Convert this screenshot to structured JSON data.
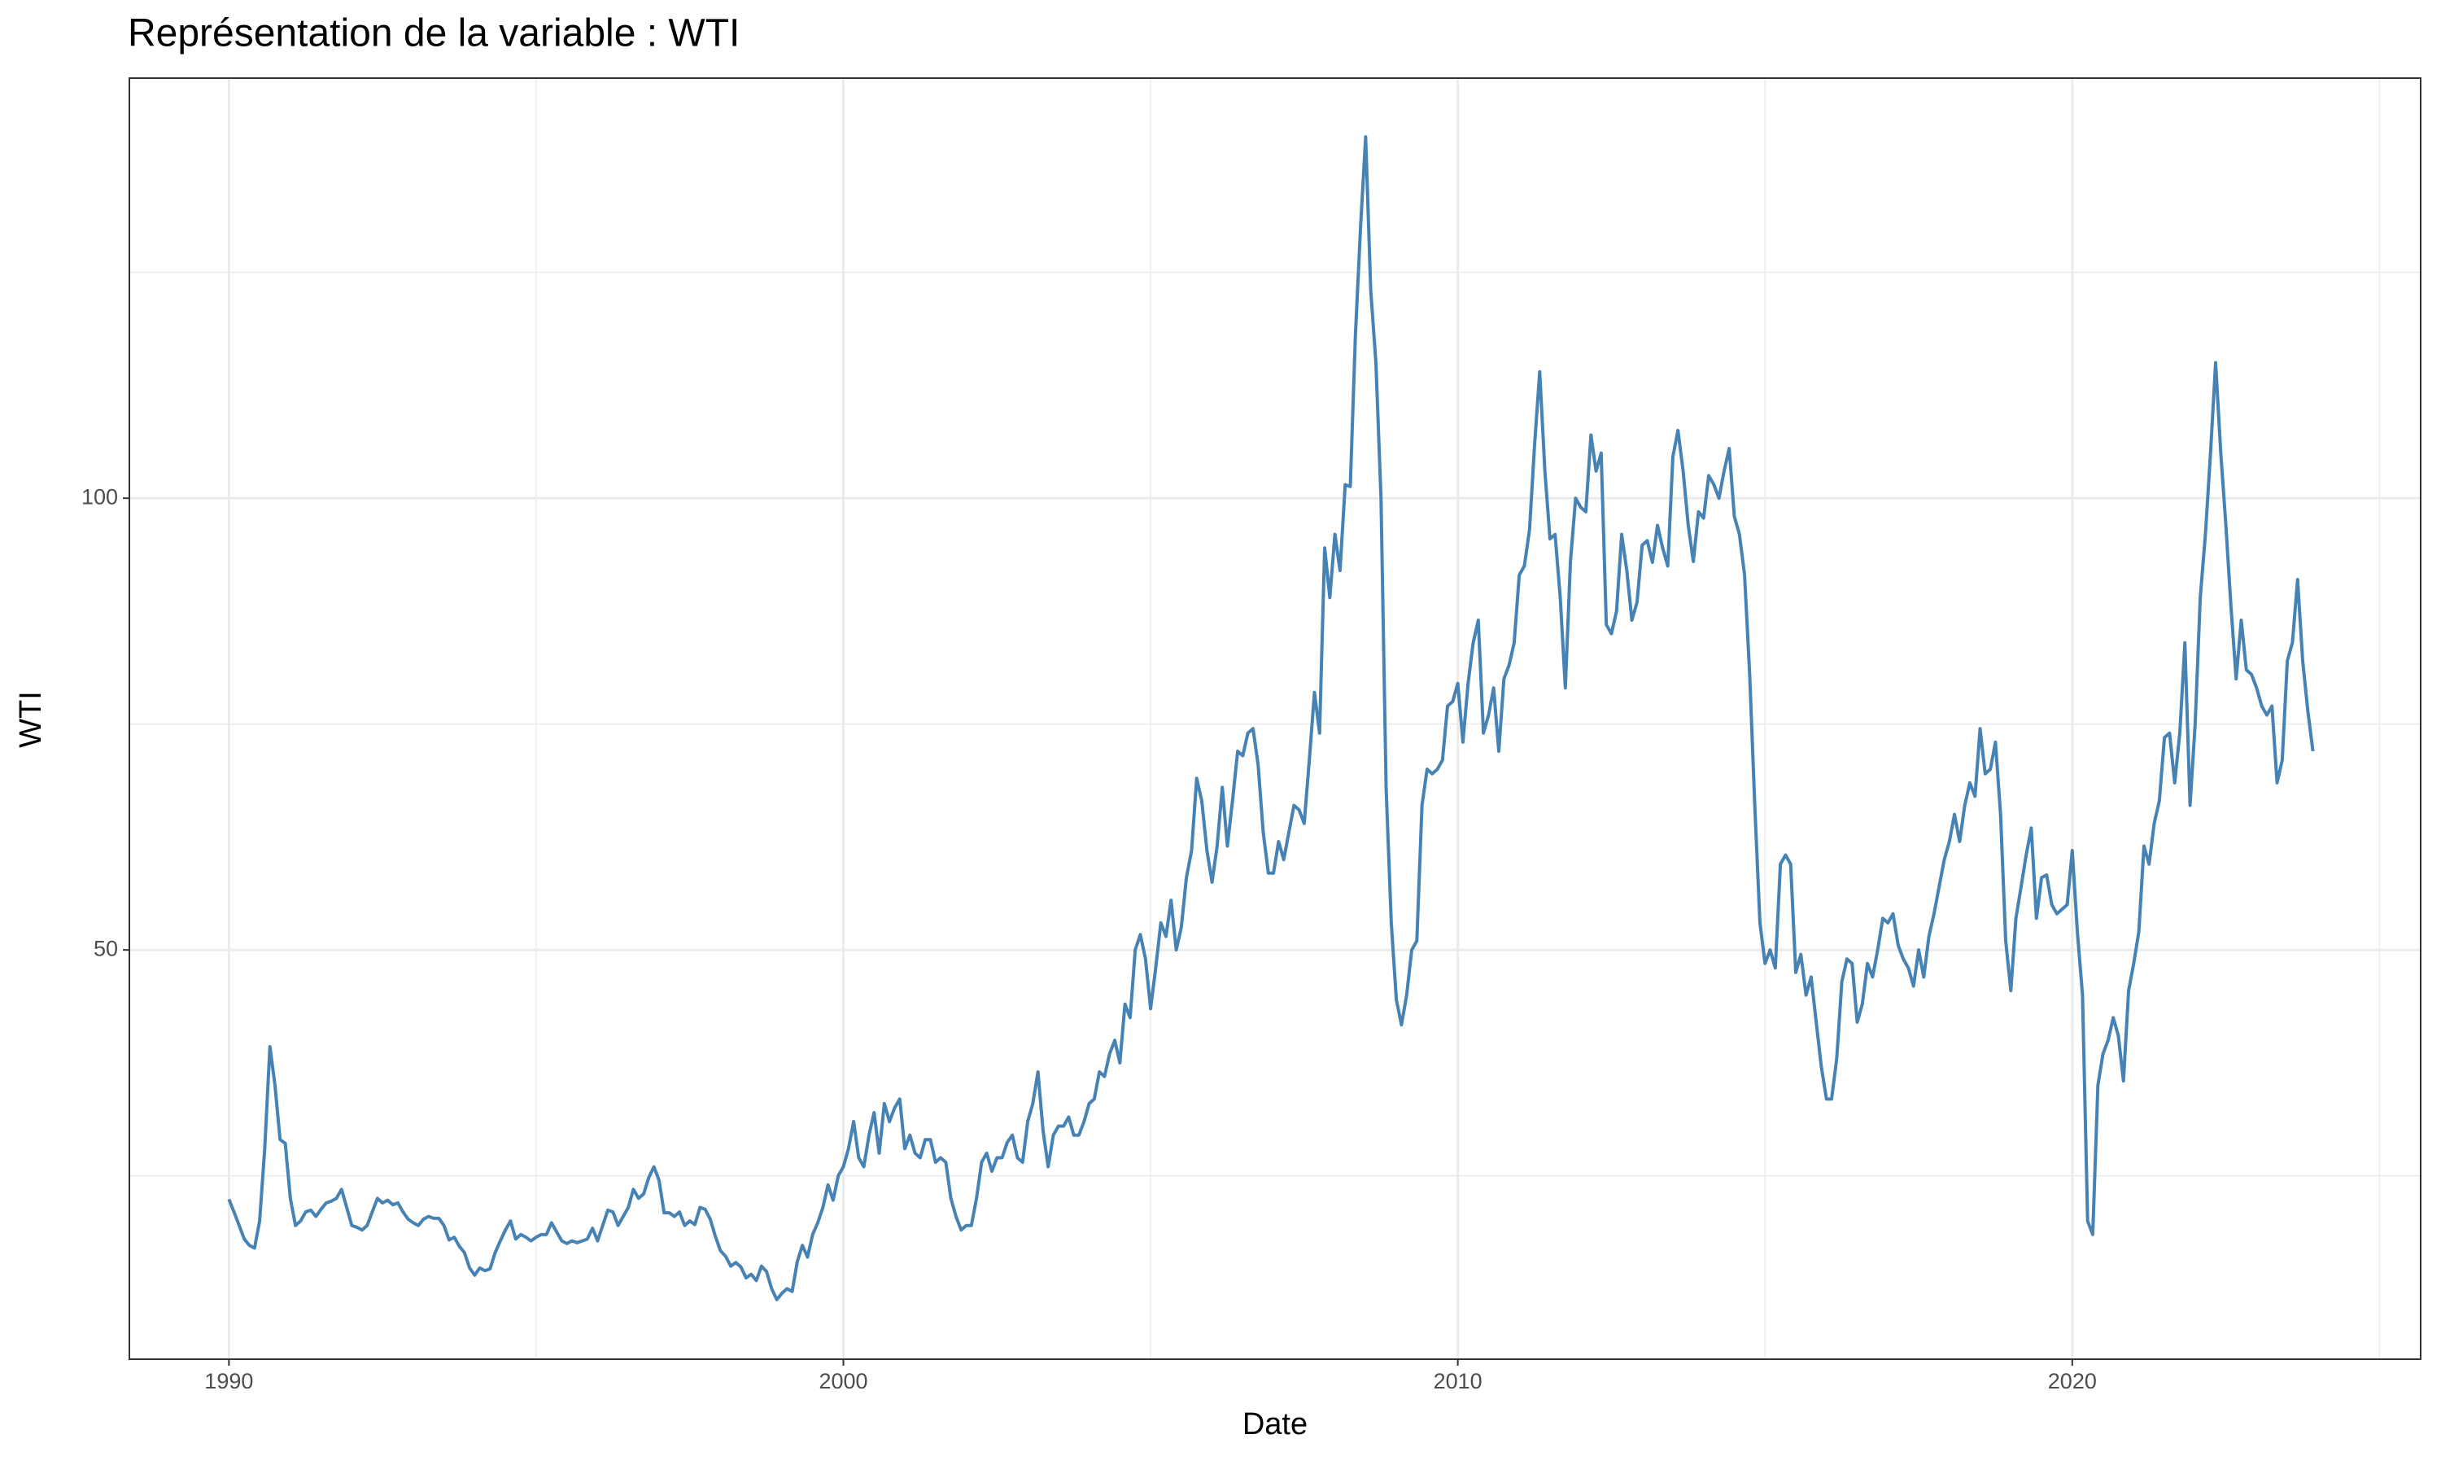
{
  "chart_data": {
    "type": "line",
    "title": "Représentation de la variable :  WTI",
    "x_label": "Date",
    "y_label": "WTI",
    "xlim": [
      1988.38,
      2025.67
    ],
    "ylim": [
      4.7,
      146.5
    ],
    "xticks": [
      1990,
      2000,
      2010,
      2020
    ],
    "yticks": [
      50,
      100
    ],
    "x_minor_grid": [
      1995,
      2005,
      2015,
      2025
    ],
    "y_minor_grid": [
      25,
      75,
      125
    ],
    "grid": true,
    "x": [
      1990.0,
      1990.083,
      1990.167,
      1990.25,
      1990.333,
      1990.417,
      1990.5,
      1990.583,
      1990.667,
      1990.75,
      1990.833,
      1990.917,
      1991.0,
      1991.083,
      1991.167,
      1991.25,
      1991.333,
      1991.417,
      1991.5,
      1991.583,
      1991.667,
      1991.75,
      1991.833,
      1991.917,
      1992.0,
      1992.083,
      1992.167,
      1992.25,
      1992.333,
      1992.417,
      1992.5,
      1992.583,
      1992.667,
      1992.75,
      1992.833,
      1992.917,
      1993.0,
      1993.083,
      1993.167,
      1993.25,
      1993.333,
      1993.417,
      1993.5,
      1993.583,
      1993.667,
      1993.75,
      1993.833,
      1993.917,
      1994.0,
      1994.083,
      1994.167,
      1994.25,
      1994.333,
      1994.417,
      1994.5,
      1994.583,
      1994.667,
      1994.75,
      1994.833,
      1994.917,
      1995.0,
      1995.083,
      1995.167,
      1995.25,
      1995.333,
      1995.417,
      1995.5,
      1995.583,
      1995.667,
      1995.75,
      1995.833,
      1995.917,
      1996.0,
      1996.083,
      1996.167,
      1996.25,
      1996.333,
      1996.417,
      1996.5,
      1996.583,
      1996.667,
      1996.75,
      1996.833,
      1996.917,
      1997.0,
      1997.083,
      1997.167,
      1997.25,
      1997.333,
      1997.417,
      1997.5,
      1997.583,
      1997.667,
      1997.75,
      1997.833,
      1997.917,
      1998.0,
      1998.083,
      1998.167,
      1998.25,
      1998.333,
      1998.417,
      1998.5,
      1998.583,
      1998.667,
      1998.75,
      1998.833,
      1998.917,
      1999.0,
      1999.083,
      1999.167,
      1999.25,
      1999.333,
      1999.417,
      1999.5,
      1999.583,
      1999.667,
      1999.75,
      1999.833,
      1999.917,
      2000.0,
      2000.083,
      2000.167,
      2000.25,
      2000.333,
      2000.417,
      2000.5,
      2000.583,
      2000.667,
      2000.75,
      2000.833,
      2000.917,
      2001.0,
      2001.083,
      2001.167,
      2001.25,
      2001.333,
      2001.417,
      2001.5,
      2001.583,
      2001.667,
      2001.75,
      2001.833,
      2001.917,
      2002.0,
      2002.083,
      2002.167,
      2002.25,
      2002.333,
      2002.417,
      2002.5,
      2002.583,
      2002.667,
      2002.75,
      2002.833,
      2002.917,
      2003.0,
      2003.083,
      2003.167,
      2003.25,
      2003.333,
      2003.417,
      2003.5,
      2003.583,
      2003.667,
      2003.75,
      2003.833,
      2003.917,
      2004.0,
      2004.083,
      2004.167,
      2004.25,
      2004.333,
      2004.417,
      2004.5,
      2004.583,
      2004.667,
      2004.75,
      2004.833,
      2004.917,
      2005.0,
      2005.083,
      2005.167,
      2005.25,
      2005.333,
      2005.417,
      2005.5,
      2005.583,
      2005.667,
      2005.75,
      2005.833,
      2005.917,
      2006.0,
      2006.083,
      2006.167,
      2006.25,
      2006.333,
      2006.417,
      2006.5,
      2006.583,
      2006.667,
      2006.75,
      2006.833,
      2006.917,
      2007.0,
      2007.083,
      2007.167,
      2007.25,
      2007.333,
      2007.417,
      2007.5,
      2007.583,
      2007.667,
      2007.75,
      2007.833,
      2007.917,
      2008.0,
      2008.083,
      2008.167,
      2008.25,
      2008.333,
      2008.417,
      2008.5,
      2008.583,
      2008.667,
      2008.75,
      2008.833,
      2008.917,
      2009.0,
      2009.083,
      2009.167,
      2009.25,
      2009.333,
      2009.417,
      2009.5,
      2009.583,
      2009.667,
      2009.75,
      2009.833,
      2009.917,
      2010.0,
      2010.083,
      2010.167,
      2010.25,
      2010.333,
      2010.417,
      2010.5,
      2010.583,
      2010.667,
      2010.75,
      2010.833,
      2010.917,
      2011.0,
      2011.083,
      2011.167,
      2011.25,
      2011.333,
      2011.417,
      2011.5,
      2011.583,
      2011.667,
      2011.75,
      2011.833,
      2011.917,
      2012.0,
      2012.083,
      2012.167,
      2012.25,
      2012.333,
      2012.417,
      2012.5,
      2012.583,
      2012.667,
      2012.75,
      2012.833,
      2012.917,
      2013.0,
      2013.083,
      2013.167,
      2013.25,
      2013.333,
      2013.417,
      2013.5,
      2013.583,
      2013.667,
      2013.75,
      2013.833,
      2013.917,
      2014.0,
      2014.083,
      2014.167,
      2014.25,
      2014.333,
      2014.417,
      2014.5,
      2014.583,
      2014.667,
      2014.75,
      2014.833,
      2014.917,
      2015.0,
      2015.083,
      2015.167,
      2015.25,
      2015.333,
      2015.417,
      2015.5,
      2015.583,
      2015.667,
      2015.75,
      2015.833,
      2015.917,
      2016.0,
      2016.083,
      2016.167,
      2016.25,
      2016.333,
      2016.417,
      2016.5,
      2016.583,
      2016.667,
      2016.75,
      2016.833,
      2016.917,
      2017.0,
      2017.083,
      2017.167,
      2017.25,
      2017.333,
      2017.417,
      2017.5,
      2017.583,
      2017.667,
      2017.75,
      2017.833,
      2017.917,
      2018.0,
      2018.083,
      2018.167,
      2018.25,
      2018.333,
      2018.417,
      2018.5,
      2018.583,
      2018.667,
      2018.75,
      2018.833,
      2018.917,
      2019.0,
      2019.083,
      2019.167,
      2019.25,
      2019.333,
      2019.417,
      2019.5,
      2019.583,
      2019.667,
      2019.75,
      2019.833,
      2019.917,
      2020.0,
      2020.083,
      2020.167,
      2020.25,
      2020.333,
      2020.417,
      2020.5,
      2020.583,
      2020.667,
      2020.75,
      2020.833,
      2020.917,
      2021.0,
      2021.083,
      2021.167,
      2021.25,
      2021.333,
      2021.417,
      2021.5,
      2021.583,
      2021.667,
      2021.75,
      2021.833,
      2021.917,
      2022.0,
      2022.083,
      2022.167,
      2022.25,
      2022.333,
      2022.417,
      2022.5,
      2022.583,
      2022.667,
      2022.75,
      2022.833,
      2022.917,
      2023.0,
      2023.083,
      2023.167,
      2023.25,
      2023.333,
      2023.417,
      2023.5,
      2023.583,
      2023.667,
      2023.75,
      2023.833,
      2023.917
    ],
    "series": [
      {
        "name": "WTI",
        "color": "#4682b4",
        "values": [
          22.4,
          21,
          19.5,
          18,
          17.3,
          17,
          20,
          28,
          39.3,
          35,
          29,
          28.6,
          22.5,
          19.5,
          20,
          21,
          21.2,
          20.5,
          21.3,
          22,
          22.2,
          22.5,
          23.5,
          21.5,
          19.5,
          19.3,
          19,
          19.5,
          21,
          22.5,
          22,
          22.3,
          21.8,
          22,
          21,
          20.2,
          19.8,
          19.5,
          20.2,
          20.5,
          20.3,
          20.3,
          19.5,
          17.9,
          18.2,
          17.2,
          16.5,
          14.8,
          14,
          14.8,
          14.5,
          14.7,
          16.5,
          17.8,
          19,
          20,
          18,
          18.5,
          18.2,
          17.8,
          18.2,
          18.5,
          18.5,
          19.8,
          18.8,
          17.8,
          17.5,
          17.8,
          17.6,
          17.8,
          18,
          19.2,
          17.8,
          19.5,
          21.2,
          21,
          19.5,
          20.5,
          21.5,
          23.5,
          22.5,
          23,
          24.8,
          26,
          24.5,
          20.9,
          20.9,
          20.5,
          21,
          19.5,
          20,
          19.6,
          21.5,
          21.3,
          20.2,
          18.3,
          16.7,
          16.1,
          15,
          15.4,
          14.9,
          13.7,
          14.1,
          13.4,
          15,
          14.4,
          12.5,
          11.3,
          12,
          12.5,
          12.2,
          15.5,
          17.3,
          16,
          18.5,
          19.8,
          21.5,
          24,
          22.3,
          25,
          26,
          28,
          31,
          27,
          26,
          29.5,
          32,
          27.5,
          33,
          31,
          32.5,
          33.5,
          28,
          29.5,
          27.5,
          27,
          29,
          29,
          26.5,
          27,
          26.5,
          22.5,
          20.5,
          19,
          19.5,
          19.5,
          22.5,
          26.5,
          27.5,
          25.5,
          27,
          27,
          28.7,
          29.5,
          27,
          26.5,
          31,
          33,
          36.5,
          30,
          26,
          29.5,
          30.5,
          30.5,
          31.5,
          29.5,
          29.5,
          31,
          33,
          33.5,
          36.5,
          36,
          38.5,
          40,
          37.5,
          44,
          42.5,
          50,
          51.7,
          49,
          43.5,
          48,
          53,
          51.5,
          55.5,
          50,
          52.5,
          58,
          61,
          69,
          66.5,
          61,
          57.5,
          61.5,
          68,
          61.5,
          66.5,
          72,
          71.5,
          74,
          74.5,
          70.5,
          63,
          58.5,
          58.5,
          62,
          60,
          63,
          66,
          65.5,
          64,
          71,
          78.5,
          74,
          94.5,
          89,
          96,
          92,
          101.5,
          101.3,
          118,
          130,
          140,
          123,
          115,
          100,
          68,
          53,
          44.5,
          41.7,
          45,
          50,
          51,
          66,
          70,
          69.5,
          70,
          71,
          77,
          77.5,
          79.5,
          73,
          79.5,
          84,
          86.5,
          74,
          76,
          79,
          72,
          80,
          81.5,
          84,
          91.5,
          92.5,
          96.5,
          106,
          114,
          103,
          95.5,
          96,
          89,
          79,
          93,
          100,
          99,
          98.5,
          107,
          103,
          105,
          86,
          85,
          87.5,
          96,
          92,
          86.5,
          88.5,
          94.8,
          95.3,
          92.9,
          97,
          94.5,
          92.5,
          104.6,
          107.5,
          103,
          97,
          93,
          98.5,
          97.8,
          102.5,
          101.5,
          100,
          103,
          105.5,
          98,
          96,
          91.5,
          80.5,
          66,
          53,
          48.5,
          50,
          48,
          59.5,
          60.5,
          59.5,
          47.5,
          49.5,
          45,
          47,
          42,
          37,
          33.5,
          33.5,
          38,
          46.5,
          49,
          48.5,
          42,
          44,
          48.5,
          47,
          50,
          53.5,
          53,
          54,
          50.5,
          49,
          48,
          46,
          50,
          47,
          51.5,
          54,
          57,
          60,
          62,
          65,
          62,
          66,
          68.5,
          67,
          74.5,
          69.5,
          70,
          73,
          65,
          51,
          45.5,
          53.5,
          57,
          60.5,
          63.5,
          53.5,
          58,
          58.3,
          55,
          54,
          54.5,
          55,
          61,
          52,
          45,
          20,
          18.5,
          35,
          38.5,
          40,
          42.5,
          40.5,
          35.5,
          45.5,
          48.5,
          52,
          61.5,
          59.5,
          64,
          66.5,
          73.5,
          74,
          68.5,
          74,
          84,
          66,
          75,
          89,
          96,
          105,
          115,
          105,
          97,
          88,
          80,
          86.5,
          81,
          80.5,
          79,
          77,
          76,
          77,
          68.5,
          71,
          82,
          84,
          91,
          82,
          76.5,
          72
        ]
      }
    ]
  }
}
